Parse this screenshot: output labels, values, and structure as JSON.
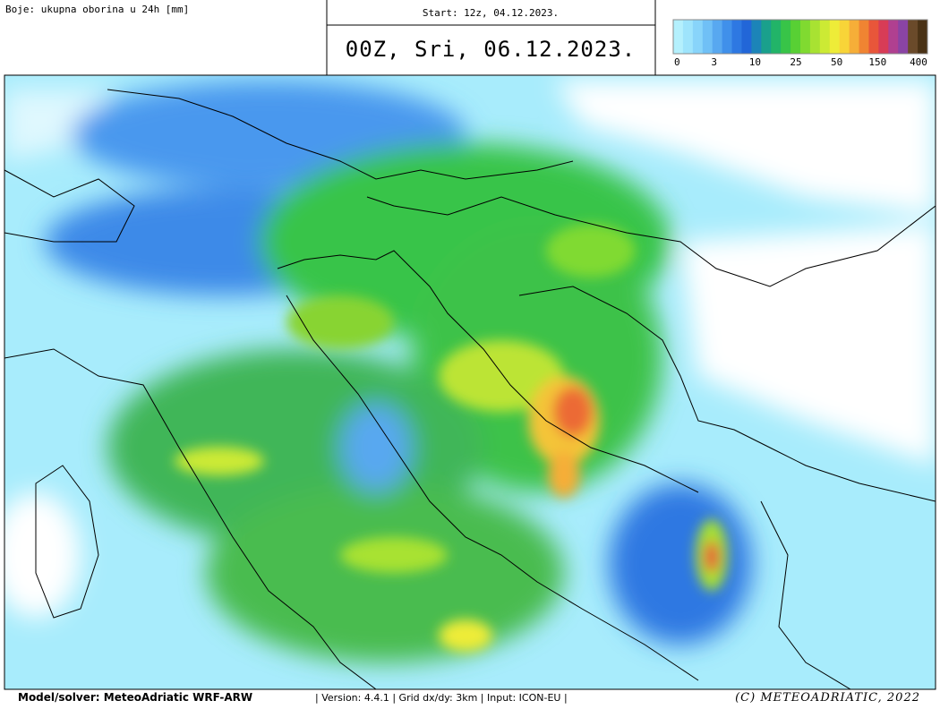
{
  "header": {
    "title": "Boje: ukupna oborina u 24h [mm]",
    "start": "Start: 12z, 04.12.2023.",
    "valid": "00Z, Sri, 06.12.2023."
  },
  "legend": {
    "labels": [
      "0",
      "3",
      "10",
      "25",
      "50",
      "150",
      "400"
    ],
    "colors": [
      "#b4f0fd",
      "#9ee4fc",
      "#88d4fa",
      "#70c0f6",
      "#58a8f0",
      "#4090ea",
      "#2e78e2",
      "#2266d8",
      "#1c84b8",
      "#1aa08c",
      "#22b468",
      "#38c448",
      "#58d034",
      "#80da30",
      "#a8e232",
      "#ccea34",
      "#eeec38",
      "#f8d438",
      "#f6ae38",
      "#f08432",
      "#e8563a",
      "#d83c56",
      "#b04090",
      "#8a44a4",
      "#6a4a2a",
      "#4a3216"
    ]
  },
  "footer": {
    "model": "Model/solver: MeteoAdriatic WRF-ARW",
    "info": "| Version: 4.4.1 | Grid dx/dy: 3km | Input: ICON-EU |",
    "copyright": "(C) METEOADRIATIC, 2022"
  }
}
